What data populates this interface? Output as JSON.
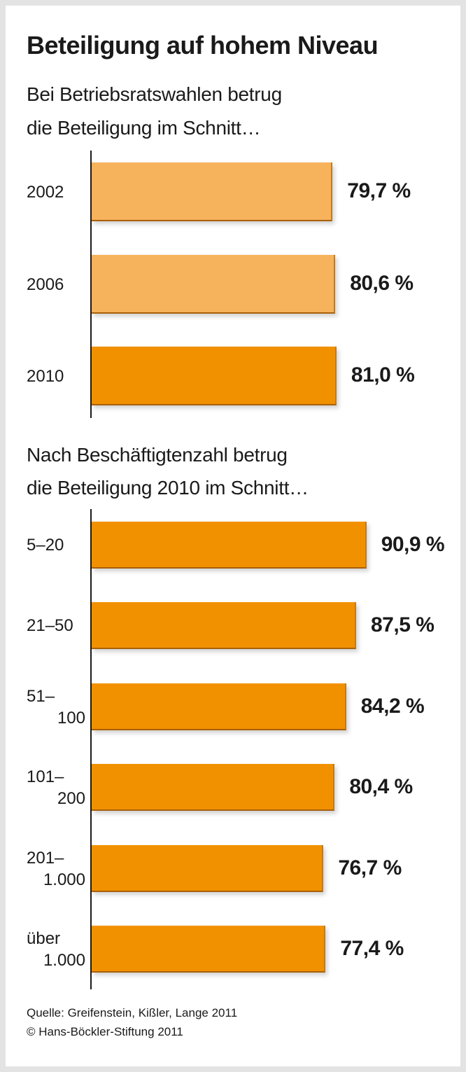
{
  "title": "Beteiligung auf hohem Niveau",
  "chart_data": [
    {
      "type": "bar",
      "orientation": "horizontal",
      "subtitle": [
        "Bei Betriebsratswahlen betrug",
        "die Beteiligung im Schnitt…"
      ],
      "categories": [
        [
          "2002"
        ],
        [
          "2006"
        ],
        [
          "2010"
        ]
      ],
      "values": [
        79.7,
        80.6,
        81.0
      ],
      "value_labels": [
        "79,7 %",
        "80,6 %",
        "81,0 %"
      ],
      "bar_colors": [
        "#f7b25c",
        "#f7b25c",
        "#f29100"
      ],
      "unit": "%"
    },
    {
      "type": "bar",
      "orientation": "horizontal",
      "subtitle": [
        "Nach Beschäftigtenzahl betrug",
        "die Beteiligung 2010 im Schnitt…"
      ],
      "categories": [
        [
          "5–20"
        ],
        [
          "21–50"
        ],
        [
          "51–",
          "100"
        ],
        [
          "101–",
          "200"
        ],
        [
          "201–",
          "1.000"
        ],
        [
          "über",
          "1.000"
        ]
      ],
      "values": [
        90.9,
        87.5,
        84.2,
        80.4,
        76.7,
        77.4
      ],
      "value_labels": [
        "90,9 %",
        "87,5 %",
        "84,2 %",
        "80,4 %",
        "76,7 %",
        "77,4 %"
      ],
      "bar_colors": [
        "#f29100",
        "#f29100",
        "#f29100",
        "#f29100",
        "#f29100",
        "#f29100"
      ],
      "unit": "%"
    }
  ],
  "footer": {
    "source": "Quelle: Greifenstein, Kißler, Lange 2011",
    "copyright": "© Hans-Böckler-Stiftung 2011"
  }
}
